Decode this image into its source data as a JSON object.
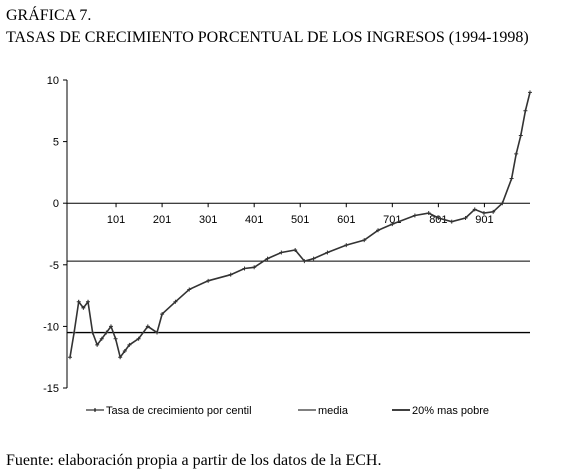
{
  "chart_data": {
    "type": "line",
    "title": "GRÁFICA 7.",
    "subtitle": "TASAS DE CRECIMIENTO PORCENTUAL DE LOS INGRESOS (1994-1998)",
    "source": "Fuente: elaboración propia a partir de los datos de la ECH.",
    "x": [
      1,
      10,
      20,
      30,
      40,
      50,
      60,
      70,
      80,
      90,
      100,
      110,
      120,
      130,
      150,
      170,
      190,
      201,
      230,
      260,
      301,
      350,
      380,
      401,
      430,
      460,
      490,
      510,
      530,
      560,
      601,
      640,
      670,
      701,
      750,
      780,
      801,
      830,
      860,
      880,
      900,
      920,
      940,
      960,
      970,
      980,
      990,
      1000
    ],
    "series": [
      {
        "name": "Tasa de crecimiento por centil",
        "color": "#333333",
        "values": [
          -12.5,
          -10.5,
          -8,
          -8.5,
          -8,
          -10.5,
          -11.5,
          -11,
          -10.5,
          -10,
          -11,
          -12.5,
          -12,
          -11.5,
          -11,
          -10,
          -10.5,
          -9,
          -8,
          -7,
          -6.3,
          -5.8,
          -5.3,
          -5.2,
          -4.5,
          -4,
          -3.8,
          -4.7,
          -4.5,
          -4,
          -3.4,
          -3,
          -2.2,
          -1.7,
          -1,
          -0.8,
          -1.2,
          -1.5,
          -1.2,
          -0.5,
          -0.8,
          -0.7,
          0,
          2,
          4,
          5.5,
          7.5,
          9
        ]
      }
    ],
    "hlines": [
      {
        "name": "media",
        "value": -4.7,
        "color": "#000000"
      },
      {
        "name": "20% mas pobre",
        "value": -10.5,
        "color": "#000000"
      }
    ],
    "xlim": [
      1,
      1000
    ],
    "xticks": [
      101,
      201,
      301,
      401,
      501,
      601,
      701,
      801,
      901
    ],
    "ylim": [
      -15,
      10
    ],
    "yticks": [
      10,
      5,
      0,
      -5,
      -10,
      -15
    ]
  }
}
